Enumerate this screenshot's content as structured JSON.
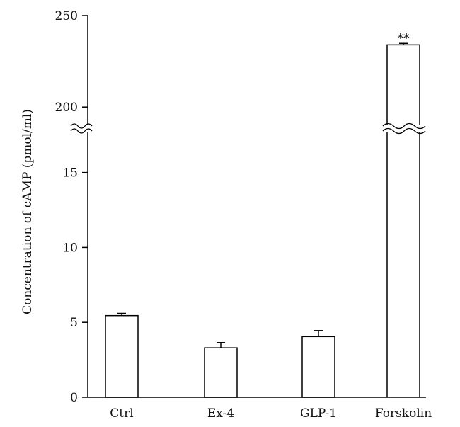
{
  "chart_data": {
    "type": "bar",
    "title": "",
    "xlabel": "",
    "ylabel": "Concentration of cAMP (pmol/ml)",
    "categories": [
      "Ctrl",
      "Ex-4",
      "GLP-1",
      "Forskolin"
    ],
    "values": [
      5.45,
      3.3,
      4.05,
      234
    ],
    "error": [
      0.15,
      0.35,
      0.4,
      0.8
    ],
    "annotations": [
      "",
      "",
      "",
      "**"
    ],
    "axis_segments": {
      "lower": {
        "ylim": [
          0,
          18.1
        ],
        "ticks": [
          0,
          5,
          10,
          15
        ]
      },
      "upper": {
        "ylim": [
          193.5,
          250
        ],
        "ticks": [
          200,
          250
        ]
      },
      "broken_axis": true
    },
    "grid": false,
    "legend": "none",
    "bar_fill": "#ffffff",
    "bar_stroke": "#000000"
  }
}
